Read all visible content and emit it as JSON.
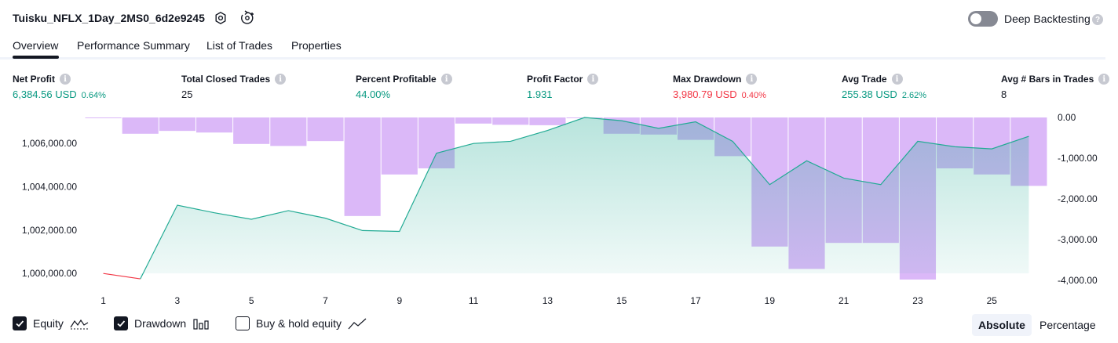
{
  "header": {
    "title": "Tuisku_NFLX_1Day_2MS0_6d2e9245",
    "deep_backtesting_label": "Deep Backtesting",
    "help_glyph": "?"
  },
  "tabs": [
    {
      "label": "Overview",
      "active": true
    },
    {
      "label": "Performance Summary",
      "active": false
    },
    {
      "label": "List of Trades",
      "active": false
    },
    {
      "label": "Properties",
      "active": false
    }
  ],
  "metrics": {
    "info_glyph": "i",
    "net_profit": {
      "label": "Net Profit",
      "value": "6,384.56 USD",
      "pct": "0.64%"
    },
    "total_closed_trades": {
      "label": "Total Closed Trades",
      "value": "25"
    },
    "percent_profitable": {
      "label": "Percent Profitable",
      "value": "44.00%"
    },
    "profit_factor": {
      "label": "Profit Factor",
      "value": "1.931"
    },
    "max_drawdown": {
      "label": "Max Drawdown",
      "value": "3,980.79 USD",
      "pct": "0.40%"
    },
    "avg_trade": {
      "label": "Avg Trade",
      "value": "255.38 USD",
      "pct": "2.62%"
    },
    "avg_bars": {
      "label": "Avg # Bars in Trades",
      "value": "8"
    }
  },
  "chart_data": {
    "type": "line+bar",
    "x": [
      1,
      2,
      3,
      4,
      5,
      6,
      7,
      8,
      9,
      10,
      11,
      12,
      13,
      14,
      15,
      16,
      17,
      18,
      19,
      20,
      21,
      22,
      23,
      24,
      25,
      26
    ],
    "x_tick_labels": [
      "1",
      "3",
      "5",
      "7",
      "9",
      "11",
      "13",
      "15",
      "17",
      "19",
      "21",
      "23",
      "25"
    ],
    "equity": {
      "values": [
        1000000,
        999750,
        1003150,
        1002800,
        1002500,
        1002900,
        1002550,
        1001980,
        1001940,
        1005550,
        1006000,
        1006100,
        1006600,
        1007200,
        1007050,
        1006700,
        1007000,
        1006100,
        1004100,
        1005200,
        1004400,
        1004100,
        1006100,
        1005850,
        1005750,
        1006330
      ],
      "ylim": [
        999500,
        1007200
      ],
      "y_tick_labels": [
        "1,000,000.00",
        "1,002,000.00",
        "1,004,000.00",
        "1,006,000.00"
      ],
      "line_color": "#22ab94",
      "loss_color": "#f23645"
    },
    "drawdown": {
      "values": [
        0,
        -400,
        -330,
        -370,
        -650,
        -700,
        -580,
        -2420,
        -1400,
        -1250,
        -150,
        -180,
        -190,
        0,
        -400,
        -420,
        -550,
        -950,
        -3170,
        -3720,
        -3080,
        -3080,
        -3980,
        -1250,
        -1400,
        -1680
      ],
      "ylim": [
        -4000,
        0
      ],
      "y_tick_labels": [
        "0.00",
        "-1,000.00",
        "-2,000.00",
        "-3,000.00",
        "-4,000.00"
      ],
      "bar_color": "#cfa0f5"
    }
  },
  "legend": {
    "equity": {
      "label": "Equity",
      "checked": true
    },
    "drawdown": {
      "label": "Drawdown",
      "checked": true
    },
    "buy_hold": {
      "label": "Buy & hold equity",
      "checked": false
    }
  },
  "view_mode": {
    "absolute": "Absolute",
    "percentage": "Percentage",
    "selected": "absolute"
  }
}
